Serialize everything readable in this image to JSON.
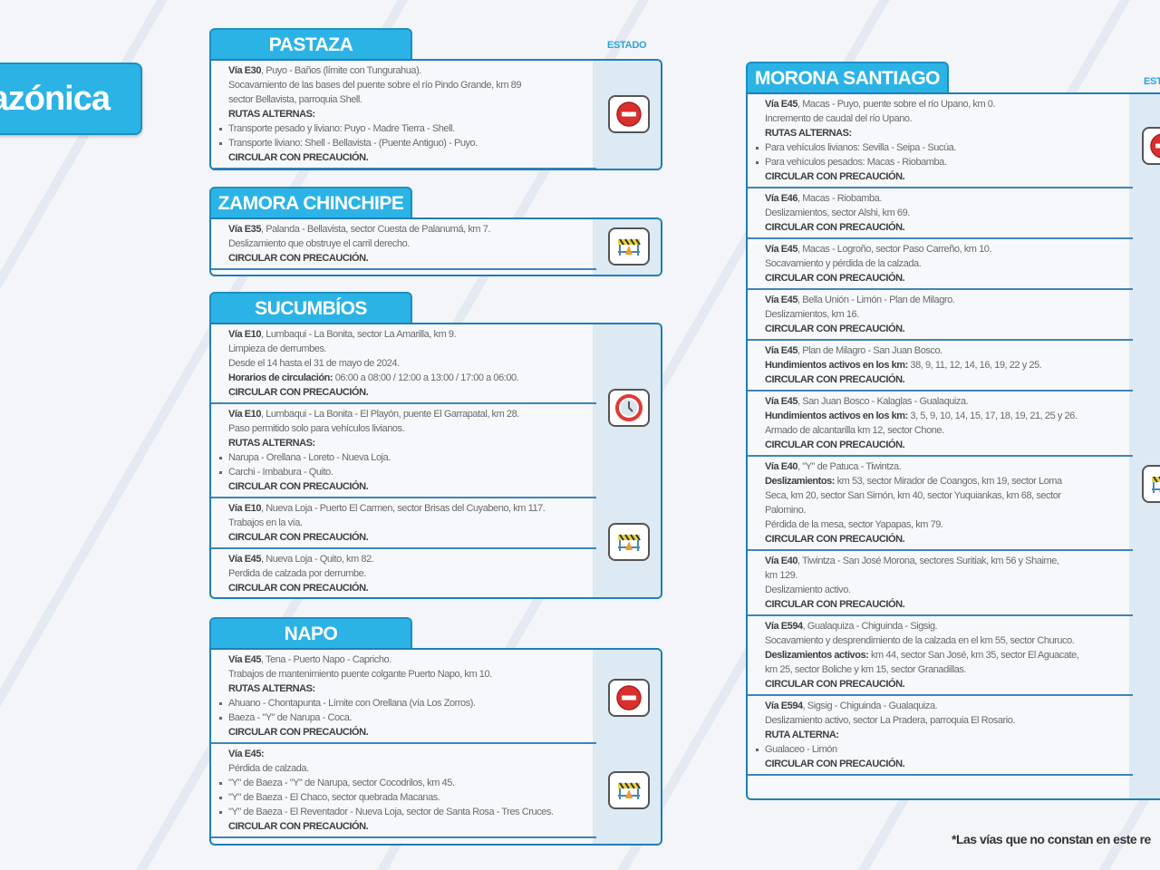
{
  "region_title": "azónica",
  "estado_label": "ESTADO",
  "footnote": "*Las vías que no constan en este re",
  "colors": {
    "accent": "#2cb3e6",
    "border": "#1e7fb8",
    "stop": "#d9302f"
  },
  "provinces": {
    "pastaza": {
      "name": "PASTAZA",
      "rows": [
        {
          "lines": [
            {
              "b": "Vía E30",
              "t": ", Puyo - Baños (límite con Tungurahua)."
            },
            {
              "t": "Socavamiento de las bases del puente sobre el río Pindo Grande, km 89"
            },
            {
              "t": "sector Bellavista, parroquia Shell."
            },
            {
              "b": "RUTAS ALTERNAS:"
            },
            {
              "bullet": true,
              "t": "Transporte pesado y liviano: Puyo - Madre Tierra - Shell."
            },
            {
              "bullet": true,
              "t": "Transporte liviano: Shell - Bellavista - (Puente Antiguo) - Puyo."
            },
            {
              "b": "CIRCULAR CON PRECAUCIÓN."
            }
          ]
        }
      ],
      "icons": [
        "stop-icon"
      ]
    },
    "zamora": {
      "name": "ZAMORA CHINCHIPE",
      "rows": [
        {
          "lines": [
            {
              "b": "Vía E35",
              "t": ", Palanda - Bellavista, sector Cuesta de Palanumá, km 7."
            },
            {
              "t": "Deslizamiento que obstruye el carril derecho."
            },
            {
              "b": "CIRCULAR CON PRECAUCIÓN."
            }
          ]
        }
      ],
      "icons": [
        "roadwork-barrier-icon"
      ]
    },
    "sucumbios": {
      "name": "SUCUMBÍOS",
      "rows": [
        {
          "lines": [
            {
              "b": "Vía E10",
              "t": ", Lumbaqui - La Bonita, sector La Amarilla, km 9."
            },
            {
              "t": "Limpieza de derrumbes."
            },
            {
              "t": "Desde el 14 hasta el 31 de mayo de 2024."
            },
            {
              "b": "Horarios de circulación:",
              "t": " 06:00 a 08:00 / 12:00 a 13:00 / 17:00 a 06:00."
            },
            {
              "b": "CIRCULAR CON PRECAUCIÓN."
            }
          ]
        },
        {
          "lines": [
            {
              "b": "Vía E10",
              "t": ", Lumbaqui - La Bonita - El Playón, puente El Garrapatal, km 28."
            },
            {
              "t": "Paso permitido solo para vehículos livianos."
            },
            {
              "b": "RUTAS ALTERNAS:"
            },
            {
              "bullet": true,
              "t": "Narupa - Orellana - Loreto - Nueva Loja."
            },
            {
              "bullet": true,
              "t": "Carchi - Imbabura - Quito."
            },
            {
              "b": "CIRCULAR CON PRECAUCIÓN."
            }
          ]
        },
        {
          "lines": [
            {
              "b": "Vía E10",
              "t": ", Nueva Loja - Puerto El Carmen, sector Brisas del Cuyabeno, km 117."
            },
            {
              "t": "Trabajos en la vía."
            },
            {
              "b": "CIRCULAR CON PRECAUCIÓN."
            }
          ]
        },
        {
          "lines": [
            {
              "b": "Vía E45",
              "t": ", Nueva Loja - Quito, km 82."
            },
            {
              "t": "Perdida de calzada por derrumbe."
            },
            {
              "b": "CIRCULAR CON PRECAUCIÓN."
            }
          ]
        }
      ],
      "icons": [
        "schedule-clock-icon",
        "roadwork-barrier-icon"
      ]
    },
    "napo": {
      "name": "NAPO",
      "rows": [
        {
          "lines": [
            {
              "b": "Vía E45",
              "t": ", Tena - Puerto Napo - Capricho."
            },
            {
              "t": "Trabajos de mantenimiento puente colgante Puerto Napo, km 10."
            },
            {
              "b": "RUTAS ALTERNAS:"
            },
            {
              "bullet": true,
              "t": "Ahuano - Chontapunta - Límite con Orellana (vía Los Zorros)."
            },
            {
              "bullet": true,
              "t": "Baeza - \"Y\" de Narupa - Coca."
            },
            {
              "b": "CIRCULAR CON PRECAUCIÓN."
            }
          ]
        },
        {
          "lines": [
            {
              "b": "Vía E45:"
            },
            {
              "t": "Pérdida de calzada."
            },
            {
              "bullet": true,
              "t": "\"Y\" de Baeza - \"Y\" de Narupa, sector Cocodrilos, km 45."
            },
            {
              "bullet": true,
              "t": "\"Y\" de Baeza - El Chaco, sector quebrada Macanas."
            },
            {
              "bullet": true,
              "t": "\"Y\" de Baeza - El Reventador - Nueva Loja, sector de Santa Rosa - Tres Cruces."
            },
            {
              "b": "CIRCULAR CON PRECAUCIÓN."
            }
          ]
        }
      ],
      "icons": [
        "stop-icon",
        "roadwork-barrier-icon"
      ]
    },
    "morona": {
      "name": "MORONA SANTIAGO",
      "rows": [
        {
          "lines": [
            {
              "b": "Vía E45",
              "t": ", Macas - Puyo, puente sobre el río Upano, km 0."
            },
            {
              "t": "Incremento de caudal del río Upano."
            },
            {
              "b": "RUTAS ALTERNAS:"
            },
            {
              "bullet": true,
              "t": "Para vehículos livianos: Sevilla - Seipa - Sucúa."
            },
            {
              "bullet": true,
              "t": "Para vehículos pesados: Macas - Riobamba."
            },
            {
              "b": "CIRCULAR CON PRECAUCIÓN."
            }
          ]
        },
        {
          "lines": [
            {
              "b": "Vía E46",
              "t": ", Macas - Riobamba."
            },
            {
              "t": "Deslizamientos, sector Alshi, km 69."
            },
            {
              "b": "CIRCULAR CON PRECAUCIÓN."
            }
          ]
        },
        {
          "lines": [
            {
              "b": "Vía E45",
              "t": ", Macas - Logroño, sector Paso Carreño, km 10."
            },
            {
              "t": "Socavamiento y pérdida de la calzada."
            },
            {
              "b": "CIRCULAR CON PRECAUCIÓN."
            }
          ]
        },
        {
          "lines": [
            {
              "b": "Vía E45",
              "t": ", Bella Unión - Limón - Plan de Milagro."
            },
            {
              "t": "Deslizamientos, km 16."
            },
            {
              "b": "CIRCULAR CON PRECAUCIÓN."
            }
          ]
        },
        {
          "lines": [
            {
              "b": "Vía E45",
              "t": ", Plan de Milagro - San Juan Bosco."
            },
            {
              "b": "Hundimientos activos en los km:",
              "t": " 38, 9, 11, 12, 14, 16, 19, 22 y 25."
            },
            {
              "b": "CIRCULAR CON PRECAUCIÓN."
            }
          ]
        },
        {
          "lines": [
            {
              "b": "Vía E45",
              "t": ", San Juan Bosco - Kalaglas - Gualaquiza."
            },
            {
              "b": "Hundimientos activos en los km:",
              "t": " 3, 5, 9, 10, 14, 15, 17, 18, 19, 21, 25 y 26."
            },
            {
              "t": "Armado de alcantarilla km 12, sector Chone."
            },
            {
              "b": "CIRCULAR CON PRECAUCIÓN."
            }
          ]
        },
        {
          "lines": [
            {
              "b": "Vía E40",
              "t": ", \"Y\" de Patuca - Tiwintza."
            },
            {
              "b": "Deslizamientos:",
              "t": " km 53, sector Mirador de Coangos, km 19, sector Loma"
            },
            {
              "t": "Seca, km 20, sector San Simón, km 40, sector Yuquiankas, km 68, sector"
            },
            {
              "t": "Palomino."
            },
            {
              "t": "Pérdida de la mesa, sector Yapapas, km 79."
            },
            {
              "b": "CIRCULAR CON PRECAUCIÓN."
            }
          ]
        },
        {
          "lines": [
            {
              "b": "Vía E40",
              "t": ", Tiwintza - San José Morona, sectores Suritiak, km 56 y Shaime,"
            },
            {
              "t": "km 129."
            },
            {
              "t": "Deslizamiento activo."
            },
            {
              "b": "CIRCULAR CON PRECAUCIÓN."
            }
          ]
        },
        {
          "lines": [
            {
              "b": "Vía E594",
              "t": ", Gualaquiza - Chiguinda - Sigsig."
            },
            {
              "t": "Socavamiento y desprendimiento de la calzada en el km 55, sector Churuco."
            },
            {
              "b": "Deslizamientos activos:",
              "t": " km 44, sector San José, km 35, sector El Aguacate,"
            },
            {
              "t": "km 25, sector Boliche y km 15, sector Granadillas."
            },
            {
              "b": "CIRCULAR CON PRECAUCIÓN."
            }
          ]
        },
        {
          "lines": [
            {
              "b": "Vía E594",
              "t": ", Sigsig - Chiguinda - Gualaquiza."
            },
            {
              "t": "Deslizamiento activo, sector La Pradera, parroquia El Rosario."
            },
            {
              "b": "RUTA ALTERNA:"
            },
            {
              "bullet": true,
              "t": "Gualaceo - Limón"
            },
            {
              "b": "CIRCULAR CON PRECAUCIÓN."
            }
          ]
        }
      ],
      "icons": [
        "stop-icon",
        "roadwork-barrier-icon"
      ]
    }
  }
}
